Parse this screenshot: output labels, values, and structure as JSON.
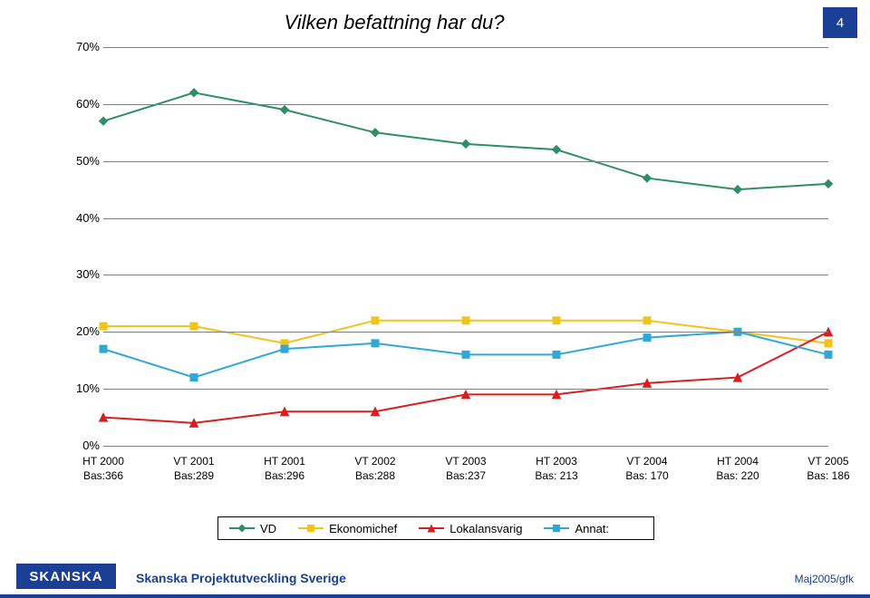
{
  "title": "Vilken befattning har du?",
  "page_number": "4",
  "chart": {
    "type": "line",
    "ylim": [
      0,
      70
    ],
    "ytick_step": 10,
    "y_format_suffix": "%",
    "xlim": [
      0,
      8
    ],
    "grid_color": "#7f7f7f",
    "background_color": "#ffffff",
    "label_fontsize": 13,
    "x_fontsize": 12,
    "categories": [
      {
        "l1": "HT 2000",
        "l2": "Bas:366"
      },
      {
        "l1": "VT 2001",
        "l2": "Bas:289"
      },
      {
        "l1": "HT 2001",
        "l2": "Bas:296"
      },
      {
        "l1": "VT 2002",
        "l2": "Bas:288"
      },
      {
        "l1": "VT 2003",
        "l2": "Bas:237"
      },
      {
        "l1": "HT 2003",
        "l2": "Bas: 213"
      },
      {
        "l1": "VT 2004",
        "l2": "Bas: 170"
      },
      {
        "l1": "HT 2004",
        "l2": "Bas: 220"
      },
      {
        "l1": "VT 2005",
        "l2": "Bas: 186"
      }
    ],
    "series": [
      {
        "name": "VD",
        "color": "#2f8f64",
        "marker": "diamond",
        "line_width": 2,
        "marker_size": 9,
        "values": [
          57,
          62,
          59,
          55,
          53,
          52,
          47,
          45,
          46
        ]
      },
      {
        "name": "Ekonomichef",
        "color": "#f0c419",
        "marker": "square",
        "line_width": 2,
        "marker_size": 8,
        "values": [
          21,
          21,
          18,
          22,
          22,
          22,
          22,
          20,
          18
        ]
      },
      {
        "name": "Lokalansvarig",
        "color": "#d81e1e",
        "marker": "triangle",
        "line_width": 2,
        "marker_size": 9,
        "values": [
          5,
          4,
          6,
          6,
          9,
          9,
          11,
          12,
          20
        ]
      },
      {
        "name": "Annat:",
        "color": "#2fa8d8",
        "marker": "square",
        "line_width": 2,
        "marker_size": 8,
        "values": [
          17,
          12,
          17,
          18,
          16,
          16,
          19,
          20,
          16
        ]
      }
    ]
  },
  "legend": {
    "items": [
      "VD",
      "Ekonomichef",
      "Lokalansvarig",
      "Annat:"
    ]
  },
  "footer": {
    "logo_text": "SKANSKA",
    "company": "Skanska Projektutveckling Sverige",
    "right": "Maj2005/gfk",
    "brand_color": "#1a3f94"
  }
}
